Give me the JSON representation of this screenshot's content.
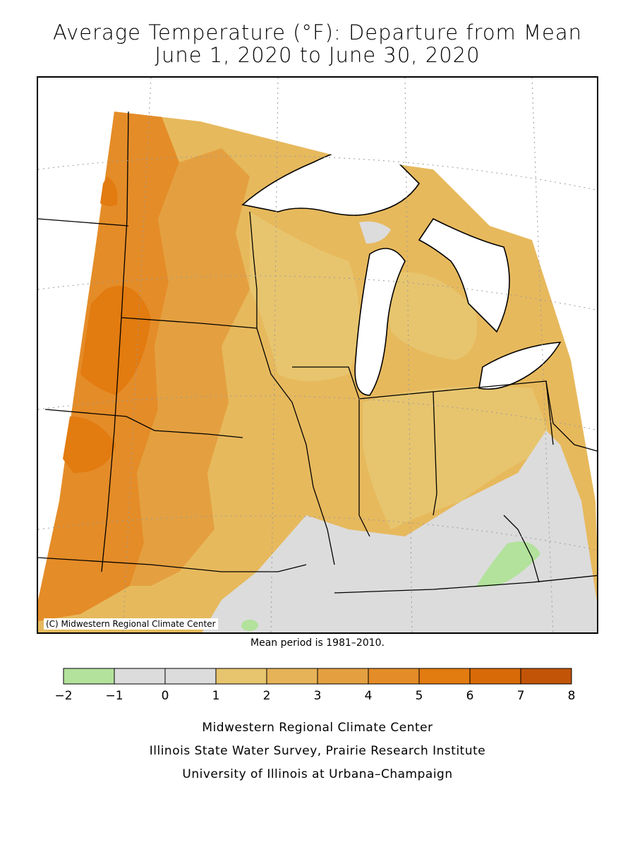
{
  "title": {
    "line1": "Average Temperature (°F): Departure from Mean",
    "line2": "June 1, 2020 to June 30, 2020"
  },
  "map": {
    "copyright": "(C) Midwestern Regional Climate Center",
    "colors": {
      "land_base": "#e7b95d",
      "water": "#ffffff",
      "near_normal": "#dcdcdc",
      "cool": "#b2e29c"
    }
  },
  "mean_period": "Mean period is 1981–2010.",
  "legend": {
    "bins": [
      {
        "from": -2,
        "to": -1,
        "color": "#b2e29c"
      },
      {
        "from": -1,
        "to": 0,
        "color": "#dcdcdc"
      },
      {
        "from": 0,
        "to": 1,
        "color": "#dcdcdc"
      },
      {
        "from": 1,
        "to": 2,
        "color": "#e7c56e"
      },
      {
        "from": 2,
        "to": 3,
        "color": "#e6b358"
      },
      {
        "from": 3,
        "to": 4,
        "color": "#e4a040"
      },
      {
        "from": 4,
        "to": 5,
        "color": "#e48c28"
      },
      {
        "from": 5,
        "to": 6,
        "color": "#e27b10"
      },
      {
        "from": 6,
        "to": 7,
        "color": "#d86a08"
      },
      {
        "from": 7,
        "to": 8,
        "color": "#c25408"
      }
    ],
    "ticks": [
      "−2",
      "−1",
      "0",
      "1",
      "2",
      "3",
      "4",
      "5",
      "6",
      "7",
      "8"
    ]
  },
  "credits": {
    "line1": "Midwestern Regional Climate Center",
    "line2": "Illinois State Water Survey, Prairie Research Institute",
    "line3": "University of Illinois at Urbana–Champaign"
  }
}
